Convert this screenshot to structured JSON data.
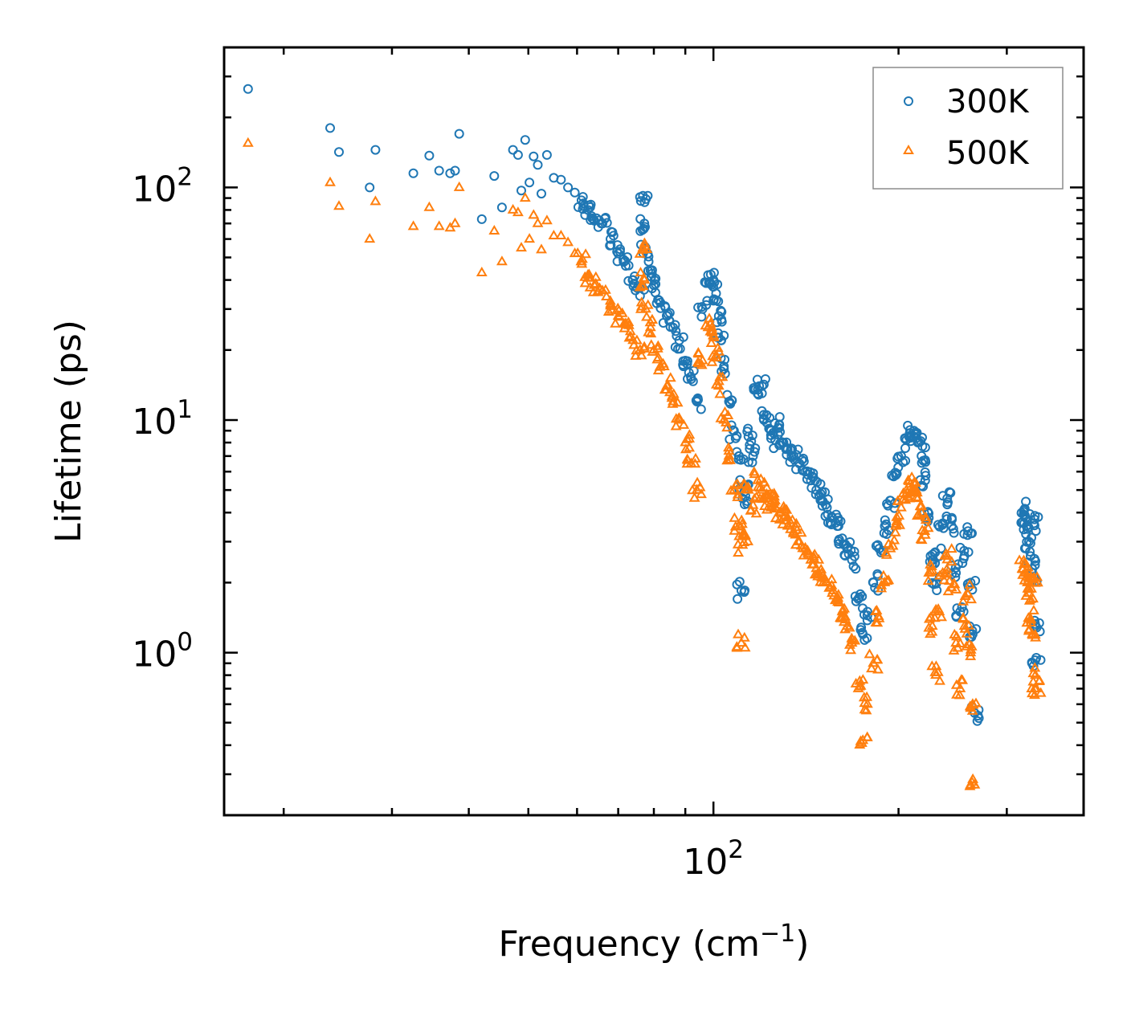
{
  "chart_data": {
    "type": "scatter",
    "title": "",
    "xlabel": "Frequency (cm",
    "xlabel_sup": "−1",
    "xlabel_suffix": ")",
    "ylabel": "Lifetime (ps)",
    "xscale": "log",
    "yscale": "log",
    "xlim": [
      16,
      400
    ],
    "ylim": [
      0.2,
      400
    ],
    "x_ticks": [
      {
        "base": "10",
        "exp": "2",
        "value": 100
      }
    ],
    "y_ticks": [
      {
        "base": "10",
        "exp": "0",
        "value": 1
      },
      {
        "base": "10",
        "exp": "1",
        "value": 10
      },
      {
        "base": "10",
        "exp": "2",
        "value": 100
      }
    ],
    "legend_position": "top-right",
    "series": [
      {
        "name": "300K",
        "color": "#1f77b4",
        "marker": "circle",
        "points": [
          [
            17.5,
            265
          ],
          [
            23.8,
            180
          ],
          [
            24.6,
            142
          ],
          [
            27.6,
            100
          ],
          [
            28.2,
            145
          ],
          [
            32.5,
            115
          ],
          [
            34.5,
            137
          ],
          [
            35.8,
            118
          ],
          [
            37.3,
            115
          ],
          [
            38,
            118
          ],
          [
            38.6,
            170
          ],
          [
            42,
            73
          ],
          [
            44,
            112
          ],
          [
            45.3,
            82
          ],
          [
            47.2,
            145
          ],
          [
            48.1,
            138
          ],
          [
            48.7,
            97
          ],
          [
            49.4,
            160
          ],
          [
            50.2,
            105
          ],
          [
            51,
            136
          ],
          [
            51.8,
            125
          ],
          [
            52.5,
            94
          ],
          [
            53.6,
            138
          ],
          [
            55,
            110
          ],
          [
            56.5,
            108
          ],
          [
            58,
            100
          ],
          [
            59.5,
            95
          ],
          [
            61,
            88
          ],
          [
            62.5,
            80
          ],
          [
            64,
            72
          ],
          [
            66,
            70
          ],
          [
            68,
            60
          ],
          [
            70,
            52
          ],
          [
            72,
            46
          ],
          [
            74,
            40
          ],
          [
            76,
            37
          ],
          [
            76.8,
            92
          ],
          [
            77.2,
            70
          ],
          [
            77.6,
            55
          ],
          [
            79,
            44
          ],
          [
            80,
            38
          ],
          [
            82,
            32
          ],
          [
            84,
            28
          ],
          [
            86,
            25
          ],
          [
            88,
            22
          ],
          [
            90,
            18
          ],
          [
            92,
            15
          ],
          [
            94,
            12
          ],
          [
            96,
            30
          ],
          [
            98,
            42
          ],
          [
            100,
            40
          ],
          [
            101,
            35
          ],
          [
            102,
            28
          ],
          [
            103,
            22
          ],
          [
            104,
            17
          ],
          [
            106,
            12
          ],
          [
            108,
            9
          ],
          [
            110,
            7
          ],
          [
            111,
            1.85
          ],
          [
            111.5,
            4.6
          ],
          [
            112,
            5.2
          ],
          [
            114,
            8.5
          ],
          [
            116,
            7
          ],
          [
            118,
            13
          ],
          [
            120,
            14
          ],
          [
            122,
            10.5
          ],
          [
            124,
            9
          ],
          [
            126,
            8.2
          ],
          [
            128,
            9.5
          ],
          [
            130,
            8
          ],
          [
            132,
            7.5
          ],
          [
            135,
            7
          ],
          [
            138,
            6.5
          ],
          [
            141,
            6
          ],
          [
            144,
            5.5
          ],
          [
            147,
            5
          ],
          [
            150,
            4.5
          ],
          [
            153,
            4.2
          ],
          [
            156,
            3.8
          ],
          [
            159,
            3.5
          ],
          [
            162,
            3.1
          ],
          [
            165,
            2.8
          ],
          [
            168,
            2.5
          ],
          [
            172,
            1.7
          ],
          [
            175,
            1.2
          ],
          [
            178,
            1.5
          ],
          [
            182,
            2
          ],
          [
            186,
            2.8
          ],
          [
            190,
            3.5
          ],
          [
            194,
            4.5
          ],
          [
            198,
            5.8
          ],
          [
            202,
            7
          ],
          [
            206,
            8.2
          ],
          [
            209,
            8.8
          ],
          [
            212,
            8.5
          ],
          [
            215,
            8
          ],
          [
            218,
            7
          ],
          [
            221,
            5.5
          ],
          [
            224,
            3.8
          ],
          [
            227,
            2.5
          ],
          [
            230,
            2
          ],
          [
            233,
            2.6
          ],
          [
            236,
            3.6
          ],
          [
            240,
            4.6
          ],
          [
            244,
            3.5
          ],
          [
            248,
            2.2
          ],
          [
            252,
            1.5
          ],
          [
            256,
            2.6
          ],
          [
            259,
            3.2
          ],
          [
            262,
            2
          ],
          [
            264,
            1.2
          ],
          [
            266,
            0.55
          ],
          [
            320,
            4.1
          ],
          [
            322,
            3.8
          ],
          [
            324,
            3.4
          ],
          [
            326,
            3
          ],
          [
            328,
            2.6
          ],
          [
            330,
            2.2
          ],
          [
            332,
            3.6
          ],
          [
            334,
            1.3
          ],
          [
            335,
            0.95
          ]
        ]
      },
      {
        "name": "500K",
        "color": "#ff7f0e",
        "marker": "triangle",
        "points": [
          [
            17.5,
            155
          ],
          [
            23.8,
            105
          ],
          [
            24.6,
            83
          ],
          [
            27.6,
            60
          ],
          [
            28.2,
            87
          ],
          [
            32.5,
            68
          ],
          [
            34.5,
            82
          ],
          [
            35.8,
            68
          ],
          [
            37.3,
            67
          ],
          [
            38,
            70
          ],
          [
            38.6,
            100
          ],
          [
            42,
            43
          ],
          [
            44,
            65
          ],
          [
            45.3,
            48
          ],
          [
            47.2,
            80
          ],
          [
            48.1,
            78
          ],
          [
            48.7,
            55
          ],
          [
            49.4,
            90
          ],
          [
            50.2,
            60
          ],
          [
            51,
            76
          ],
          [
            51.8,
            70
          ],
          [
            52.5,
            54
          ],
          [
            53.6,
            72
          ],
          [
            55,
            62
          ],
          [
            56.5,
            62
          ],
          [
            58,
            58
          ],
          [
            59.5,
            52
          ],
          [
            61,
            48
          ],
          [
            62.5,
            42
          ],
          [
            64,
            38
          ],
          [
            66,
            36
          ],
          [
            68,
            31
          ],
          [
            70,
            28
          ],
          [
            72,
            26
          ],
          [
            74,
            22
          ],
          [
            76,
            20
          ],
          [
            76.8,
            55
          ],
          [
            77.2,
            40
          ],
          [
            77.6,
            30
          ],
          [
            79,
            25
          ],
          [
            80,
            20
          ],
          [
            82,
            17
          ],
          [
            84,
            14
          ],
          [
            86,
            12
          ],
          [
            88,
            10
          ],
          [
            90,
            8
          ],
          [
            92,
            6.5
          ],
          [
            94,
            5
          ],
          [
            96,
            18
          ],
          [
            98,
            25
          ],
          [
            100,
            23
          ],
          [
            101,
            19
          ],
          [
            102,
            14
          ],
          [
            104,
            10
          ],
          [
            106,
            7
          ],
          [
            108,
            5
          ],
          [
            110,
            3.5
          ],
          [
            111,
            1.1
          ],
          [
            111.5,
            2.9
          ],
          [
            112,
            3.2
          ],
          [
            114,
            5
          ],
          [
            116,
            4.3
          ],
          [
            118,
            5.5
          ],
          [
            120,
            5
          ],
          [
            122,
            4.6
          ],
          [
            124,
            4.2
          ],
          [
            126,
            4.5
          ],
          [
            128,
            4
          ],
          [
            130,
            3.8
          ],
          [
            132,
            3.5
          ],
          [
            135,
            3.3
          ],
          [
            138,
            3
          ],
          [
            141,
            2.8
          ],
          [
            144,
            2.5
          ],
          [
            147,
            2.3
          ],
          [
            150,
            2.1
          ],
          [
            153,
            2
          ],
          [
            156,
            1.8
          ],
          [
            159,
            1.7
          ],
          [
            162,
            1.5
          ],
          [
            165,
            1.3
          ],
          [
            168,
            1.1
          ],
          [
            172,
            0.7
          ],
          [
            175,
            0.42
          ],
          [
            178,
            0.6
          ],
          [
            182,
            0.9
          ],
          [
            186,
            1.4
          ],
          [
            190,
            2
          ],
          [
            194,
            2.8
          ],
          [
            198,
            3.5
          ],
          [
            202,
            4.2
          ],
          [
            206,
            5
          ],
          [
            209,
            5.3
          ],
          [
            212,
            5
          ],
          [
            215,
            4.6
          ],
          [
            218,
            4
          ],
          [
            221,
            3.2
          ],
          [
            224,
            2.2
          ],
          [
            227,
            1.3
          ],
          [
            230,
            0.8
          ],
          [
            233,
            1.5
          ],
          [
            236,
            2.2
          ],
          [
            240,
            2.6
          ],
          [
            244,
            1.9
          ],
          [
            248,
            1.1
          ],
          [
            252,
            0.7
          ],
          [
            256,
            1.3
          ],
          [
            259,
            1.8
          ],
          [
            262,
            1
          ],
          [
            264,
            0.6
          ],
          [
            266,
            0.27
          ],
          [
            320,
            2.4
          ],
          [
            322,
            2.2
          ],
          [
            324,
            2
          ],
          [
            326,
            1.8
          ],
          [
            328,
            1.4
          ],
          [
            330,
            1.2
          ],
          [
            332,
            2.1
          ],
          [
            334,
            0.8
          ],
          [
            335,
            0.7
          ]
        ]
      }
    ]
  }
}
